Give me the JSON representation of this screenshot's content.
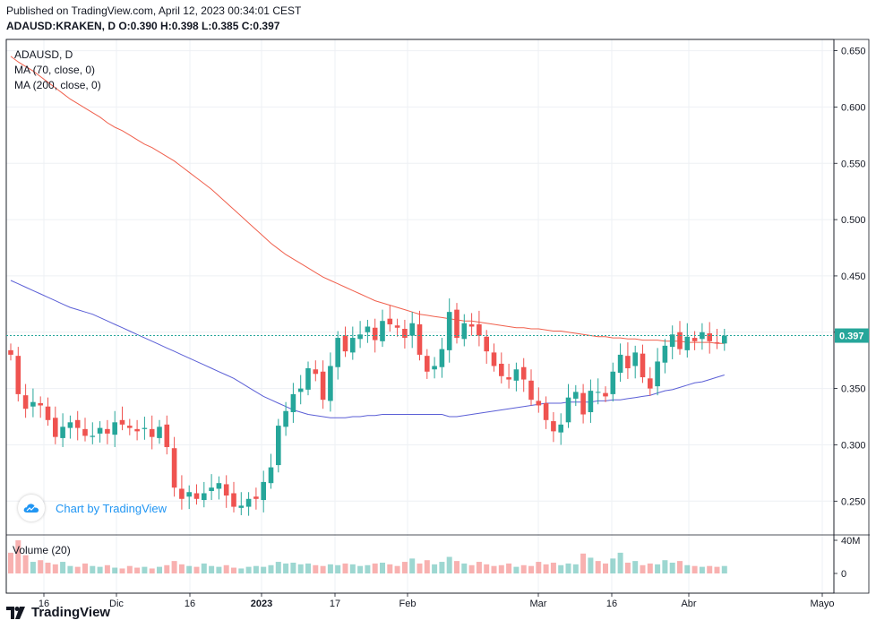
{
  "header": {
    "published": "Published on TradingView.com, April 12, 2023 00:34:01 CEST",
    "ohlc": "ADAUSD:KRAKEN, D  O:0.390 H:0.398 L:0.385 C:0.397"
  },
  "legend": {
    "symbol": "ADAUSD, D",
    "ma70": "MA (70, close, 0)",
    "ma200": "MA (200, close, 0)"
  },
  "volume_label": "Volume (20)",
  "attribution": "Chart by TradingView",
  "footer_brand": "TradingView",
  "colors": {
    "up": "#26a69a",
    "down": "#ef5350",
    "ma70": "#5b5fd6",
    "ma200": "#f0604d",
    "grid": "#eef0f4"
  },
  "chart_data": {
    "type": "candlestick",
    "symbol": "ADAUSD:KRAKEN",
    "timeframe": "D",
    "ylim": [
      0.22,
      0.66
    ],
    "y_ticks": [
      "0.650",
      "0.600",
      "0.550",
      "0.500",
      "0.450",
      "0.400",
      "0.350",
      "0.300",
      "0.250"
    ],
    "last_price": "0.397",
    "x_ticks": [
      "16",
      "Dic",
      "16",
      "2023",
      "17",
      "Feb",
      "Mar",
      "16",
      "Abr",
      "Mayo"
    ],
    "volume_ticks": [
      "40M",
      "0"
    ],
    "last_ohlc": {
      "open": 0.39,
      "high": 0.398,
      "low": 0.385,
      "close": 0.397
    },
    "closes": [
      0.38,
      0.345,
      0.332,
      0.338,
      0.335,
      0.322,
      0.307,
      0.316,
      0.32,
      0.315,
      0.308,
      0.308,
      0.315,
      0.31,
      0.32,
      0.318,
      0.315,
      0.312,
      0.315,
      0.307,
      0.316,
      0.298,
      0.262,
      0.252,
      0.258,
      0.252,
      0.257,
      0.262,
      0.266,
      0.255,
      0.245,
      0.246,
      0.252,
      0.252,
      0.267,
      0.28,
      0.317,
      0.33,
      0.345,
      0.35,
      0.368,
      0.363,
      0.34,
      0.37,
      0.395,
      0.383,
      0.395,
      0.398,
      0.405,
      0.393,
      0.41,
      0.407,
      0.404,
      0.395,
      0.408,
      0.38,
      0.365,
      0.37,
      0.385,
      0.418,
      0.395,
      0.408,
      0.405,
      0.397,
      0.383,
      0.37,
      0.361,
      0.358,
      0.367,
      0.358,
      0.34,
      0.335,
      0.322,
      0.312,
      0.318,
      0.342,
      0.347,
      0.327,
      0.348,
      0.347,
      0.343,
      0.365,
      0.38,
      0.368,
      0.382,
      0.36,
      0.35,
      0.374,
      0.388,
      0.398,
      0.385,
      0.396,
      0.392,
      0.4,
      0.392,
      0.39,
      0.397
    ],
    "ma70": [
      0.446,
      0.443,
      0.44,
      0.437,
      0.434,
      0.431,
      0.428,
      0.425,
      0.422,
      0.42,
      0.418,
      0.416,
      0.413,
      0.41,
      0.407,
      0.404,
      0.401,
      0.398,
      0.395,
      0.392,
      0.389,
      0.386,
      0.383,
      0.38,
      0.377,
      0.374,
      0.371,
      0.368,
      0.365,
      0.362,
      0.359,
      0.355,
      0.351,
      0.347,
      0.343,
      0.34,
      0.337,
      0.334,
      0.331,
      0.329,
      0.327,
      0.326,
      0.325,
      0.324,
      0.324,
      0.324,
      0.325,
      0.325,
      0.326,
      0.326,
      0.327,
      0.327,
      0.327,
      0.327,
      0.327,
      0.327,
      0.327,
      0.327,
      0.327,
      0.325,
      0.325,
      0.326,
      0.327,
      0.328,
      0.329,
      0.33,
      0.331,
      0.332,
      0.333,
      0.334,
      0.335,
      0.336,
      0.337,
      0.337,
      0.337,
      0.338,
      0.338,
      0.338,
      0.338,
      0.339,
      0.339,
      0.34,
      0.34,
      0.341,
      0.342,
      0.343,
      0.344,
      0.346,
      0.348,
      0.349,
      0.351,
      0.353,
      0.355,
      0.356,
      0.358,
      0.36,
      0.362
    ],
    "ma200": [
      0.645,
      0.64,
      0.636,
      0.632,
      0.627,
      0.622,
      0.617,
      0.612,
      0.607,
      0.603,
      0.599,
      0.595,
      0.591,
      0.586,
      0.582,
      0.579,
      0.575,
      0.571,
      0.567,
      0.564,
      0.56,
      0.556,
      0.552,
      0.547,
      0.542,
      0.537,
      0.532,
      0.527,
      0.521,
      0.515,
      0.509,
      0.503,
      0.497,
      0.491,
      0.485,
      0.479,
      0.474,
      0.469,
      0.465,
      0.461,
      0.457,
      0.453,
      0.449,
      0.446,
      0.443,
      0.44,
      0.437,
      0.434,
      0.431,
      0.428,
      0.426,
      0.424,
      0.422,
      0.42,
      0.418,
      0.416,
      0.415,
      0.414,
      0.413,
      0.412,
      0.411,
      0.41,
      0.41,
      0.409,
      0.408,
      0.407,
      0.406,
      0.405,
      0.404,
      0.404,
      0.403,
      0.403,
      0.402,
      0.401,
      0.401,
      0.4,
      0.399,
      0.398,
      0.397,
      0.396,
      0.396,
      0.395,
      0.395,
      0.394,
      0.394,
      0.393,
      0.393,
      0.393,
      0.392,
      0.392,
      0.392,
      0.391,
      0.391,
      0.391,
      0.391,
      0.39,
      0.39
    ],
    "volumes": [
      25,
      40,
      22,
      14,
      16,
      13,
      11,
      14,
      9,
      8,
      12,
      9,
      8,
      10,
      7,
      6,
      9,
      7,
      8,
      6,
      8,
      10,
      15,
      11,
      9,
      8,
      12,
      9,
      8,
      10,
      7,
      6,
      8,
      9,
      8,
      10,
      14,
      12,
      13,
      11,
      12,
      10,
      9,
      11,
      10,
      12,
      11,
      9,
      10,
      12,
      13,
      11,
      9,
      14,
      18,
      12,
      16,
      11,
      14,
      20,
      15,
      12,
      10,
      14,
      11,
      9,
      10,
      12,
      8,
      10,
      9,
      14,
      11,
      13,
      10,
      12,
      11,
      24,
      19,
      15,
      12,
      18,
      25,
      13,
      15,
      10,
      12,
      11,
      16,
      13,
      15,
      10,
      9,
      8,
      9,
      8,
      9
    ]
  }
}
